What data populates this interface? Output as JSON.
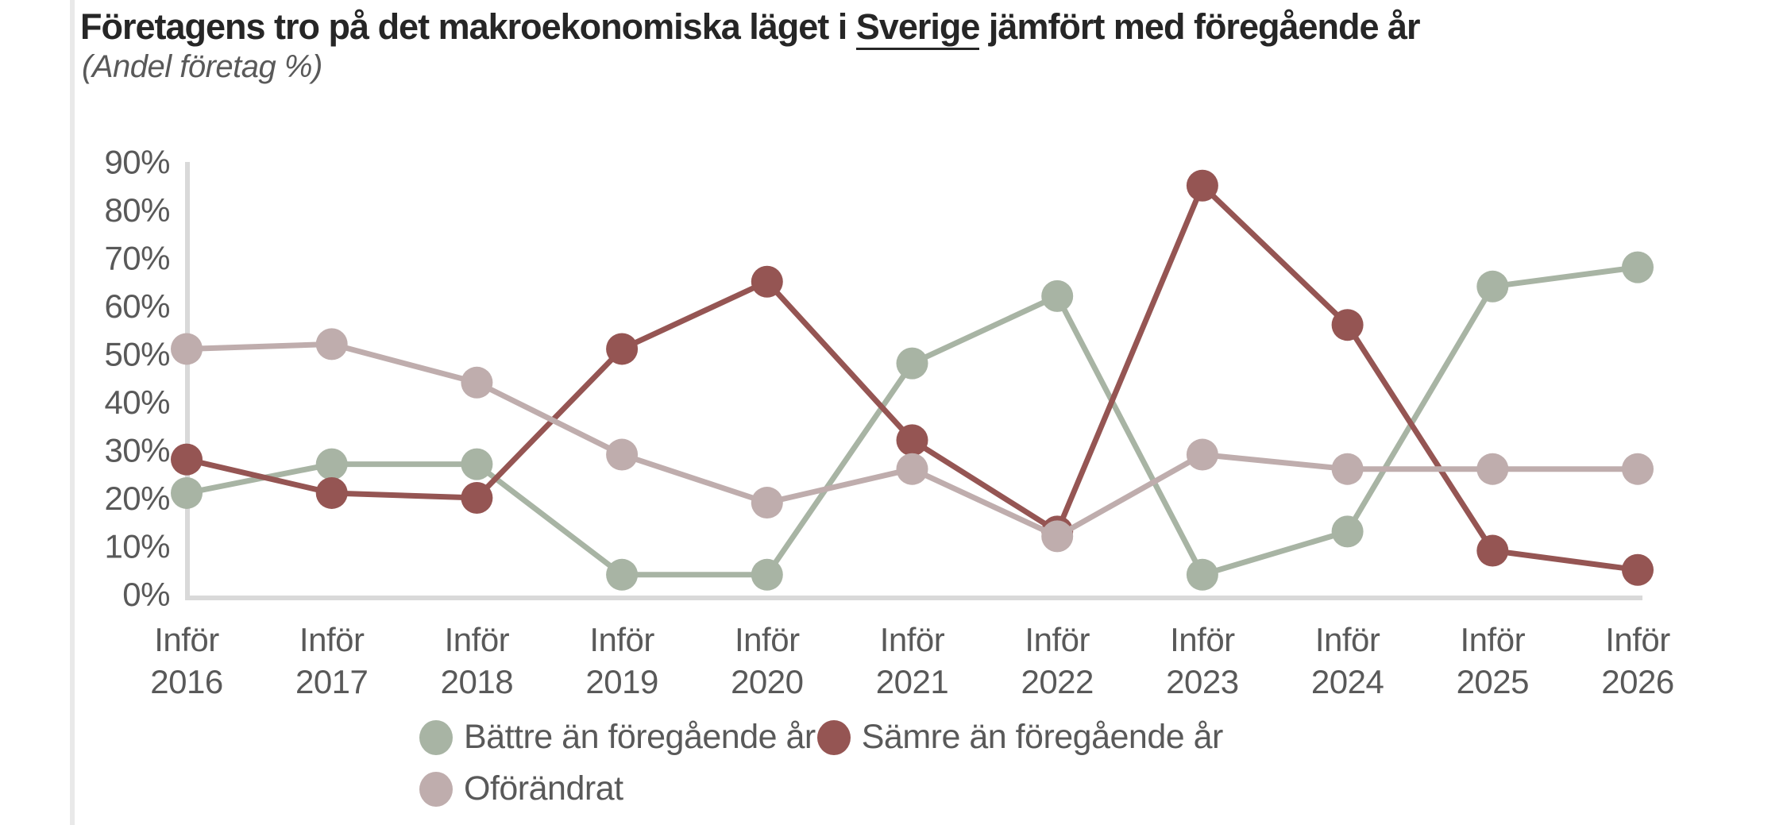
{
  "title": {
    "part1": "Företagens tro på det makroekonomiska läget i ",
    "underlined": "Sverige",
    "part2": " jämfört med föregående år"
  },
  "subtitle": "(Andel företag %)",
  "colors": {
    "axis_line": "#d9d9d9",
    "tick_label": "#595959",
    "title_text": "#262626",
    "legend_text": "#595959"
  },
  "chart_data": {
    "type": "line",
    "title": "Företagens tro på det makroekonomiska läget i Sverige jämfört med föregående år",
    "subtitle": "(Andel företag %)",
    "xlabel": "",
    "ylabel": "Andel företag %",
    "ylim": [
      0,
      90
    ],
    "grid": false,
    "legend_position": "bottom",
    "ytick_values": [
      0,
      10,
      20,
      30,
      40,
      50,
      60,
      70,
      80,
      90
    ],
    "ytick_labels": [
      "0%",
      "10%",
      "20%",
      "30%",
      "40%",
      "50%",
      "60%",
      "70%",
      "80%",
      "90%"
    ],
    "categories": [
      {
        "top": "Inför",
        "year": "2016"
      },
      {
        "top": "Inför",
        "year": "2017"
      },
      {
        "top": "Inför",
        "year": "2018"
      },
      {
        "top": "Inför",
        "year": "2019"
      },
      {
        "top": "Inför",
        "year": "2020"
      },
      {
        "top": "Inför",
        "year": "2021"
      },
      {
        "top": "Inför",
        "year": "2022"
      },
      {
        "top": "Inför",
        "year": "2023"
      },
      {
        "top": "Inför",
        "year": "2024"
      },
      {
        "top": "Inför",
        "year": "2025"
      },
      {
        "top": "Inför",
        "year": "2026"
      }
    ],
    "series": [
      {
        "name": "Bättre än föregående år",
        "color": "#a8b4a4",
        "values": [
          21,
          27,
          27,
          4,
          4,
          48,
          62,
          4,
          13,
          64,
          68
        ]
      },
      {
        "name": "Sämre än föregående år",
        "color": "#955553",
        "values": [
          28,
          21,
          20,
          51,
          65,
          32,
          13,
          85,
          56,
          9,
          5
        ]
      },
      {
        "name": "Oförändrat",
        "color": "#bfadad",
        "values": [
          51,
          52,
          44,
          29,
          19,
          26,
          12,
          29,
          26,
          26,
          26
        ]
      }
    ]
  }
}
